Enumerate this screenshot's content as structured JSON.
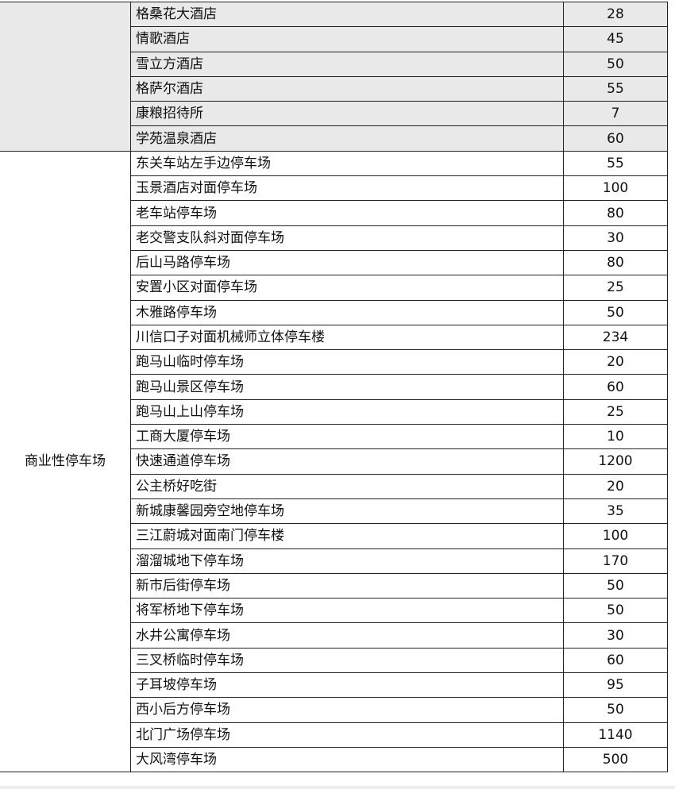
{
  "table": {
    "groups": [
      {
        "label": "",
        "shaded": true,
        "rows": [
          {
            "name": "格桑花大酒店",
            "value": "28"
          },
          {
            "name": "情歌酒店",
            "value": "45"
          },
          {
            "name": "雪立方酒店",
            "value": "50"
          },
          {
            "name": "格萨尔酒店",
            "value": "55"
          },
          {
            "name": "康粮招待所",
            "value": "7"
          },
          {
            "name": "学苑温泉酒店",
            "value": "60"
          }
        ]
      },
      {
        "label": "商业性停车场",
        "shaded": false,
        "rows": [
          {
            "name": "东关车站左手边停车场",
            "value": "55"
          },
          {
            "name": "玉景酒店对面停车场",
            "value": "100"
          },
          {
            "name": "老车站停车场",
            "value": "80"
          },
          {
            "name": "老交警支队斜对面停车场",
            "value": "30"
          },
          {
            "name": "后山马路停车场",
            "value": "80"
          },
          {
            "name": "安置小区对面停车场",
            "value": "25"
          },
          {
            "name": "木雅路停车场",
            "value": "50"
          },
          {
            "name": "川信口子对面机械师立体停车楼",
            "value": "234"
          },
          {
            "name": "跑马山临时停车场",
            "value": "20"
          },
          {
            "name": "跑马山景区停车场",
            "value": "60"
          },
          {
            "name": "跑马山上山停车场",
            "value": "25"
          },
          {
            "name": "工商大厦停车场",
            "value": "10"
          },
          {
            "name": "快速通道停车场",
            "value": "1200"
          },
          {
            "name": "公主桥好吃街",
            "value": "20"
          },
          {
            "name": "新城康馨园旁空地停车场",
            "value": "35"
          },
          {
            "name": "三江蔚城对面南门停车楼",
            "value": "100"
          },
          {
            "name": "溜溜城地下停车场",
            "value": "170"
          },
          {
            "name": "新市后街停车场",
            "value": "50"
          },
          {
            "name": "将军桥地下停车场",
            "value": "50"
          },
          {
            "name": "水井公寓停车场",
            "value": "30"
          },
          {
            "name": "三叉桥临时停车场",
            "value": "60"
          },
          {
            "name": "子耳坡停车场",
            "value": "95"
          },
          {
            "name": "西小后方停车场",
            "value": "50"
          },
          {
            "name": "北门广场停车场",
            "value": "1140"
          },
          {
            "name": "大风湾停车场",
            "value": "500"
          }
        ]
      }
    ],
    "colors": {
      "shaded_row": "#e9e9e9",
      "border": "#222222"
    }
  }
}
